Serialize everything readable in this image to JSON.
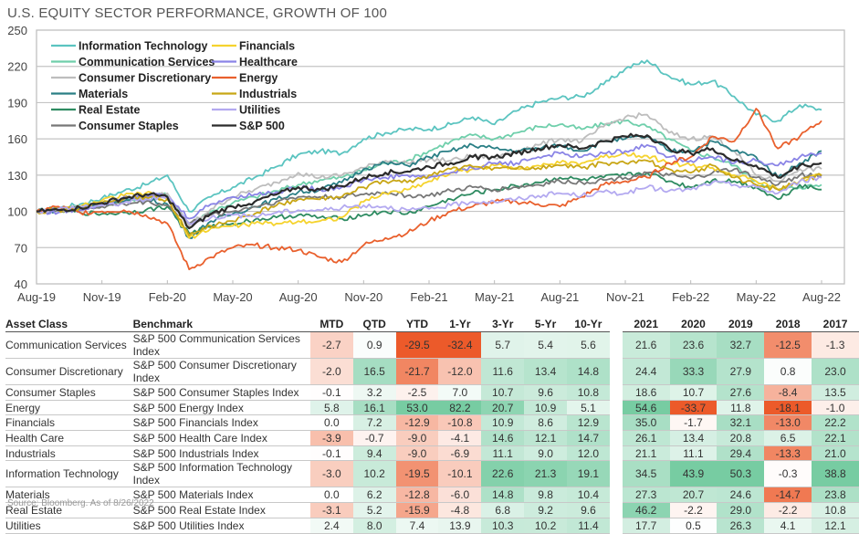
{
  "title": "U.S. EQUITY SECTOR PERFORMANCE, GROWTH OF 100",
  "source": "Source: Bloomberg. As of 8/26/2022",
  "chart_data": {
    "type": "line",
    "title": "U.S. EQUITY SECTOR PERFORMANCE, GROWTH OF 100",
    "xlabel": "",
    "ylabel": "",
    "ylim": [
      40,
      250
    ],
    "yticks": [
      250,
      220,
      190,
      160,
      130,
      100,
      70,
      40
    ],
    "xtick_labels": [
      "Aug-19",
      "Nov-19",
      "Feb-20",
      "May-20",
      "Aug-20",
      "Nov-20",
      "Feb-21",
      "May-21",
      "Aug-21",
      "Nov-21",
      "Feb-22",
      "May-22",
      "Aug-22"
    ],
    "x": [
      "Aug-19",
      "Sep-19",
      "Oct-19",
      "Nov-19",
      "Dec-19",
      "Jan-20",
      "Feb-20",
      "Mar-20",
      "Apr-20",
      "May-20",
      "Jun-20",
      "Jul-20",
      "Aug-20",
      "Sep-20",
      "Oct-20",
      "Nov-20",
      "Dec-20",
      "Jan-21",
      "Feb-21",
      "Mar-21",
      "Apr-21",
      "May-21",
      "Jun-21",
      "Jul-21",
      "Aug-21",
      "Sep-21",
      "Oct-21",
      "Nov-21",
      "Dec-21",
      "Jan-22",
      "Feb-22",
      "Mar-22",
      "Apr-22",
      "May-22",
      "Jun-22",
      "Jul-22",
      "Aug-22"
    ],
    "grid": true,
    "legend_position": "top-left",
    "series": [
      {
        "name": "Information Technology",
        "color": "#5bc4c0",
        "values": [
          100,
          103,
          106,
          111,
          117,
          122,
          130,
          100,
          112,
          120,
          128,
          137,
          147,
          150,
          148,
          160,
          165,
          168,
          168,
          172,
          178,
          172,
          183,
          190,
          194,
          195,
          205,
          218,
          225,
          212,
          205,
          208,
          195,
          180,
          175,
          188,
          184
        ]
      },
      {
        "name": "Communication Services",
        "color": "#6fcfab",
        "values": [
          100,
          101,
          103,
          106,
          109,
          112,
          114,
          90,
          100,
          107,
          112,
          117,
          122,
          126,
          128,
          134,
          140,
          142,
          150,
          158,
          163,
          160,
          165,
          170,
          172,
          168,
          172,
          175,
          170,
          160,
          150,
          145,
          138,
          125,
          118,
          120,
          122
        ]
      },
      {
        "name": "Consumer Discretionary",
        "color": "#bdbdbd",
        "values": [
          100,
          101,
          103,
          106,
          109,
          112,
          115,
          88,
          102,
          112,
          118,
          124,
          132,
          128,
          130,
          136,
          142,
          140,
          143,
          142,
          146,
          144,
          150,
          155,
          160,
          158,
          170,
          178,
          180,
          165,
          160,
          162,
          150,
          130,
          125,
          135,
          135
        ]
      },
      {
        "name": "Materials",
        "color": "#2a7f85",
        "values": [
          100,
          101,
          103,
          106,
          108,
          110,
          106,
          78,
          92,
          98,
          104,
          110,
          116,
          118,
          124,
          135,
          140,
          138,
          145,
          150,
          155,
          152,
          150,
          152,
          155,
          150,
          158,
          160,
          162,
          150,
          150,
          158,
          150,
          145,
          128,
          140,
          150
        ]
      },
      {
        "name": "Real Estate",
        "color": "#2e8b61",
        "values": [
          100,
          101,
          99,
          98,
          99,
          101,
          104,
          82,
          87,
          90,
          93,
          95,
          97,
          95,
          94,
          97,
          100,
          98,
          104,
          110,
          115,
          118,
          121,
          124,
          128,
          126,
          128,
          130,
          132,
          125,
          120,
          126,
          125,
          120,
          110,
          122,
          118
        ]
      },
      {
        "name": "Consumer Staples",
        "color": "#777777",
        "values": [
          100,
          101,
          102,
          104,
          106,
          108,
          105,
          90,
          97,
          100,
          104,
          108,
          112,
          112,
          112,
          114,
          116,
          113,
          113,
          117,
          120,
          118,
          120,
          122,
          125,
          124,
          126,
          128,
          132,
          130,
          127,
          132,
          135,
          128,
          122,
          130,
          130
        ]
      },
      {
        "name": "Financials",
        "color": "#f5d32e",
        "values": [
          100,
          101,
          104,
          109,
          113,
          115,
          110,
          78,
          86,
          88,
          90,
          90,
          92,
          92,
          95,
          108,
          115,
          118,
          125,
          132,
          135,
          138,
          136,
          138,
          140,
          140,
          145,
          148,
          146,
          140,
          138,
          136,
          130,
          125,
          118,
          125,
          130
        ]
      },
      {
        "name": "Healthcare",
        "color": "#8a84e6",
        "values": [
          100,
          99,
          101,
          106,
          112,
          114,
          112,
          94,
          106,
          112,
          114,
          116,
          120,
          118,
          120,
          126,
          128,
          130,
          128,
          132,
          136,
          140,
          140,
          145,
          148,
          145,
          148,
          150,
          155,
          145,
          142,
          145,
          140,
          142,
          138,
          145,
          148
        ]
      },
      {
        "name": "Energy",
        "color": "#e9602d",
        "values": [
          100,
          104,
          99,
          100,
          101,
          97,
          90,
          52,
          62,
          70,
          72,
          70,
          68,
          62,
          58,
          72,
          78,
          82,
          92,
          100,
          104,
          108,
          108,
          106,
          104,
          112,
          122,
          125,
          128,
          140,
          145,
          162,
          158,
          185,
          152,
          162,
          175
        ]
      },
      {
        "name": "Industrials",
        "color": "#c8a616",
        "values": [
          100,
          101,
          103,
          107,
          110,
          112,
          110,
          80,
          88,
          92,
          98,
          105,
          110,
          110,
          112,
          120,
          125,
          124,
          130,
          135,
          137,
          136,
          135,
          136,
          138,
          136,
          140,
          140,
          142,
          135,
          132,
          138,
          128,
          122,
          118,
          125,
          130
        ]
      },
      {
        "name": "Utilities",
        "color": "#b3a9f0",
        "values": [
          100,
          102,
          104,
          105,
          107,
          110,
          112,
          90,
          95,
          97,
          96,
          99,
          101,
          101,
          103,
          105,
          104,
          101,
          102,
          105,
          108,
          108,
          110,
          113,
          115,
          113,
          116,
          115,
          120,
          117,
          118,
          124,
          122,
          120,
          115,
          125,
          128
        ]
      },
      {
        "name": "S&P 500",
        "color": "#2b2b2b",
        "values": [
          100,
          101,
          103,
          107,
          111,
          114,
          112,
          86,
          98,
          104,
          108,
          114,
          120,
          118,
          121,
          128,
          132,
          133,
          137,
          140,
          145,
          145,
          148,
          152,
          155,
          152,
          158,
          162,
          163,
          152,
          148,
          152,
          142,
          138,
          128,
          138,
          140
        ]
      }
    ]
  },
  "table": {
    "headers": {
      "asset_class": "Asset Class",
      "benchmark": "Benchmark",
      "periods": [
        "MTD",
        "QTD",
        "YTD",
        "1-Yr",
        "3-Yr",
        "5-Yr",
        "10-Yr"
      ],
      "years": [
        "2021",
        "2020",
        "2019",
        "2018",
        "2017"
      ]
    },
    "rows": [
      {
        "asset": "Communication Services",
        "benchmark": "S&P 500 Communication Services Index",
        "periods": [
          "-2.7",
          "0.9",
          "-29.5",
          "-32.4",
          "5.7",
          "5.4",
          "5.6"
        ],
        "years": [
          "21.6",
          "23.6",
          "32.7",
          "-12.5",
          "-1.3"
        ]
      },
      {
        "asset": "Consumer Discretionary",
        "benchmark": "S&P 500 Consumer Discretionary Index",
        "periods": [
          "-2.0",
          "16.5",
          "-21.7",
          "-12.0",
          "11.6",
          "13.4",
          "14.8"
        ],
        "years": [
          "24.4",
          "33.3",
          "27.9",
          "0.8",
          "23.0"
        ]
      },
      {
        "asset": "Consumer Staples",
        "benchmark": "S&P 500 Consumer Staples Index",
        "periods": [
          "-0.1",
          "3.2",
          "-2.5",
          "7.0",
          "10.7",
          "9.6",
          "10.8"
        ],
        "years": [
          "18.6",
          "10.7",
          "27.6",
          "-8.4",
          "13.5"
        ]
      },
      {
        "asset": "Energy",
        "benchmark": "S&P 500 Energy Index",
        "periods": [
          "5.8",
          "16.1",
          "53.0",
          "82.2",
          "20.7",
          "10.9",
          "5.1"
        ],
        "years": [
          "54.6",
          "-33.7",
          "11.8",
          "-18.1",
          "-1.0"
        ]
      },
      {
        "asset": "Financials",
        "benchmark": "S&P 500 Financials Index",
        "periods": [
          "0.0",
          "7.2",
          "-12.9",
          "-10.8",
          "10.9",
          "8.6",
          "12.9"
        ],
        "years": [
          "35.0",
          "-1.7",
          "32.1",
          "-13.0",
          "22.2"
        ]
      },
      {
        "asset": "Health Care",
        "benchmark": "S&P 500 Health Care Index",
        "periods": [
          "-3.9",
          "-0.7",
          "-9.0",
          "-4.1",
          "14.6",
          "12.1",
          "14.7"
        ],
        "years": [
          "26.1",
          "13.4",
          "20.8",
          "6.5",
          "22.1"
        ]
      },
      {
        "asset": "Industrials",
        "benchmark": "S&P 500 Industrials Index",
        "periods": [
          "-0.1",
          "9.4",
          "-9.0",
          "-6.9",
          "11.1",
          "9.0",
          "12.0"
        ],
        "years": [
          "21.1",
          "11.1",
          "29.4",
          "-13.3",
          "21.0"
        ]
      },
      {
        "asset": "Information Technology",
        "benchmark": "S&P 500 Information Technology Index",
        "periods": [
          "-3.0",
          "10.2",
          "-19.5",
          "-10.1",
          "22.6",
          "21.3",
          "19.1"
        ],
        "years": [
          "34.5",
          "43.9",
          "50.3",
          "-0.3",
          "38.8"
        ]
      },
      {
        "asset": "Materials",
        "benchmark": "S&P 500 Materials Index",
        "periods": [
          "0.0",
          "6.2",
          "-12.8",
          "-6.0",
          "14.8",
          "9.8",
          "10.4"
        ],
        "years": [
          "27.3",
          "20.7",
          "24.6",
          "-14.7",
          "23.8"
        ]
      },
      {
        "asset": "Real Estate",
        "benchmark": "S&P 500 Real Estate Index",
        "periods": [
          "-3.1",
          "5.2",
          "-15.9",
          "-4.8",
          "6.8",
          "9.2",
          "9.6"
        ],
        "years": [
          "46.2",
          "-2.2",
          "29.0",
          "-2.2",
          "10.8"
        ]
      },
      {
        "asset": "Utilities",
        "benchmark": "S&P 500 Utilities Index",
        "periods": [
          "2.4",
          "8.0",
          "7.4",
          "13.9",
          "10.3",
          "10.2",
          "11.4"
        ],
        "years": [
          "17.7",
          "0.5",
          "26.3",
          "4.1",
          "12.1"
        ]
      }
    ]
  }
}
